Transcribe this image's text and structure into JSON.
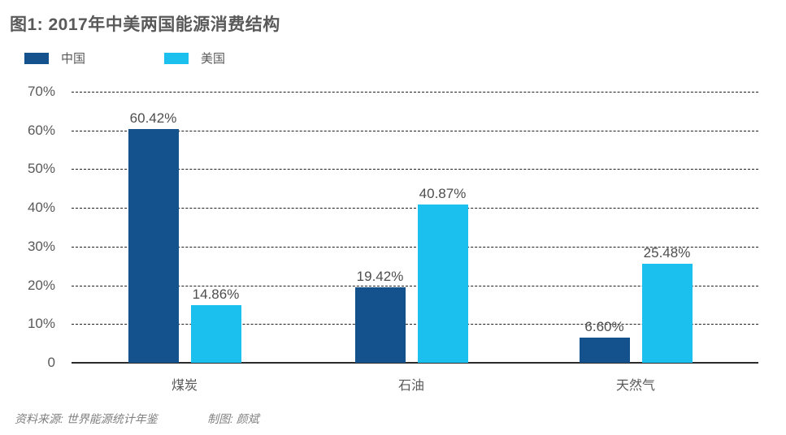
{
  "page": {
    "title": "图1: 2017年中美两国能源消费结构"
  },
  "chart_data": {
    "type": "bar",
    "title": "图1: 2017年中美两国能源消费结构",
    "categories": [
      "煤炭",
      "石油",
      "天然气"
    ],
    "series": [
      {
        "name": "中国",
        "color": "#14528E",
        "values": [
          60.42,
          19.42,
          6.6
        ],
        "value_labels": [
          "60.42%",
          "19.42%",
          "6.60%"
        ]
      },
      {
        "name": "美国",
        "color": "#1CC0EE",
        "values": [
          14.86,
          40.87,
          25.48
        ],
        "value_labels": [
          "14.86%",
          "40.87%",
          "25.48%"
        ]
      }
    ],
    "xlabel": "",
    "ylabel": "",
    "ylim": [
      0,
      70
    ],
    "yticks": [
      {
        "label": "70%",
        "value": 70
      },
      {
        "label": "60%",
        "value": 60
      },
      {
        "label": "50%",
        "value": 50
      },
      {
        "label": "40%",
        "value": 40
      },
      {
        "label": "30%",
        "value": 30
      },
      {
        "label": "20%",
        "value": 20
      },
      {
        "label": "10%",
        "value": 10
      },
      {
        "label": "0",
        "value": 0
      }
    ],
    "grid": "horizontal-dashed",
    "legend_position": "top-left"
  },
  "footer": {
    "source": "资料来源: 世界能源统计年鉴",
    "credit": "制图: 颜斌"
  }
}
